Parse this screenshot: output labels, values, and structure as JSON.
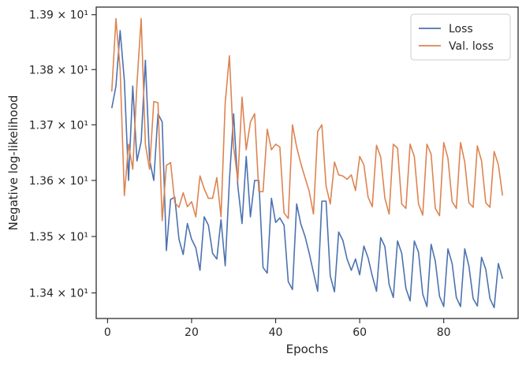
{
  "chart_data": {
    "type": "line",
    "xlabel": "Epochs",
    "ylabel": "Negative log-likelihood",
    "yscale": "log",
    "grid": false,
    "legend_placement": "top-right",
    "xlim": [
      -2.7,
      97.7
    ],
    "ylim": [
      13.355,
      13.914
    ],
    "xticks": [
      0,
      20,
      40,
      60,
      80
    ],
    "yticks": [
      {
        "value": 13.4,
        "label": "1.34 × 10¹"
      },
      {
        "value": 13.5,
        "label": "1.35 × 10¹"
      },
      {
        "value": 13.6,
        "label": "1.36 × 10¹"
      },
      {
        "value": 13.7,
        "label": "1.37 × 10¹"
      },
      {
        "value": 13.8,
        "label": "1.38 × 10¹"
      },
      {
        "value": 13.9,
        "label": "1.39 × 10¹"
      }
    ],
    "x": [
      1,
      2,
      3,
      4,
      5,
      6,
      7,
      8,
      9,
      10,
      11,
      12,
      13,
      14,
      15,
      16,
      17,
      18,
      19,
      20,
      21,
      22,
      23,
      24,
      25,
      26,
      27,
      28,
      29,
      30,
      31,
      32,
      33,
      34,
      35,
      36,
      37,
      38,
      39,
      40,
      41,
      42,
      43,
      44,
      45,
      46,
      47,
      48,
      49,
      50,
      51,
      52,
      53,
      54,
      55,
      56,
      57,
      58,
      59,
      60,
      61,
      62,
      63,
      64,
      65,
      66,
      67,
      68,
      69,
      70,
      71,
      72,
      73,
      74,
      75,
      76,
      77,
      78,
      79,
      80,
      81,
      82,
      83,
      84,
      85,
      86,
      87,
      88,
      89,
      90,
      91,
      92,
      93,
      94
    ],
    "series": [
      {
        "name": "Loss",
        "color": "#4c72b0",
        "values": [
          13.73,
          13.77,
          13.871,
          13.78,
          13.6,
          13.77,
          13.635,
          13.67,
          13.817,
          13.637,
          13.6,
          13.72,
          13.705,
          13.475,
          13.566,
          13.57,
          13.495,
          13.468,
          13.523,
          13.495,
          13.48,
          13.44,
          13.535,
          13.52,
          13.47,
          13.46,
          13.53,
          13.448,
          13.6,
          13.72,
          13.59,
          13.523,
          13.643,
          13.535,
          13.6,
          13.6,
          13.445,
          13.435,
          13.568,
          13.525,
          13.533,
          13.52,
          13.42,
          13.406,
          13.558,
          13.522,
          13.5,
          13.47,
          13.436,
          13.403,
          13.563,
          13.563,
          13.43,
          13.402,
          13.508,
          13.493,
          13.46,
          13.44,
          13.46,
          13.432,
          13.483,
          13.462,
          13.43,
          13.403,
          13.498,
          13.482,
          13.415,
          13.392,
          13.492,
          13.47,
          13.408,
          13.386,
          13.492,
          13.472,
          13.398,
          13.376,
          13.486,
          13.456,
          13.394,
          13.376,
          13.478,
          13.452,
          13.392,
          13.376,
          13.478,
          13.447,
          13.39,
          13.377,
          13.463,
          13.442,
          13.39,
          13.374,
          13.452,
          13.425
        ]
      },
      {
        "name": "Val. loss",
        "color": "#dd8452",
        "values": [
          13.76,
          13.893,
          13.8,
          13.573,
          13.665,
          13.62,
          13.775,
          13.893,
          13.665,
          13.62,
          13.742,
          13.74,
          13.528,
          13.627,
          13.632,
          13.56,
          13.552,
          13.578,
          13.553,
          13.562,
          13.535,
          13.608,
          13.585,
          13.568,
          13.568,
          13.605,
          13.535,
          13.74,
          13.825,
          13.66,
          13.6,
          13.75,
          13.655,
          13.705,
          13.72,
          13.58,
          13.58,
          13.692,
          13.655,
          13.665,
          13.66,
          13.542,
          13.532,
          13.7,
          13.66,
          13.63,
          13.605,
          13.58,
          13.54,
          13.688,
          13.7,
          13.59,
          13.558,
          13.633,
          13.61,
          13.608,
          13.602,
          13.61,
          13.582,
          13.643,
          13.628,
          13.57,
          13.553,
          13.663,
          13.642,
          13.568,
          13.54,
          13.665,
          13.658,
          13.558,
          13.55,
          13.665,
          13.643,
          13.558,
          13.538,
          13.665,
          13.647,
          13.55,
          13.537,
          13.668,
          13.64,
          13.562,
          13.55,
          13.668,
          13.633,
          13.56,
          13.552,
          13.662,
          13.635,
          13.56,
          13.552,
          13.652,
          13.628,
          13.573
        ]
      }
    ]
  }
}
